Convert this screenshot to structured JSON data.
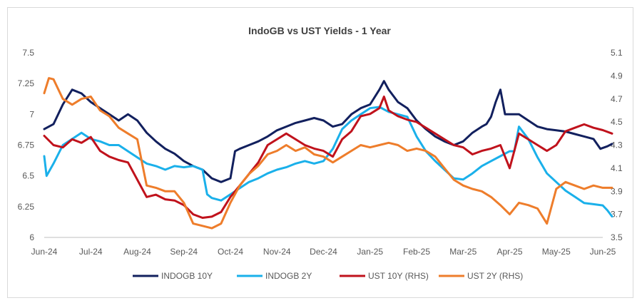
{
  "chart_data": {
    "type": "line",
    "title": "IndoGB vs UST Yields - 1 Year",
    "x_tick_labels": [
      "Jun-24",
      "Jul-24",
      "Aug-24",
      "Sep-24",
      "Oct-24",
      "Nov-24",
      "Dec-24",
      "Jan-25",
      "Feb-25",
      "Mar-25",
      "Apr-25",
      "May-25",
      "Jun-25"
    ],
    "y_left": {
      "ticks": [
        "6",
        "6.25",
        "6.5",
        "6.75",
        "7",
        "7.25",
        "7.5"
      ],
      "ylim": [
        6,
        7.5
      ]
    },
    "y_right": {
      "ticks": [
        "3.5",
        "3.7",
        "3.9",
        "4.1",
        "4.3",
        "4.5",
        "4.7",
        "4.9",
        "5.1"
      ],
      "ylim": [
        3.5,
        5.1
      ]
    },
    "grid": false,
    "legend_position": "bottom",
    "series": [
      {
        "name": "INDOGB 10Y",
        "axis": "left",
        "color": "#12205e",
        "points": [
          [
            0,
            6.88
          ],
          [
            0.2,
            6.92
          ],
          [
            0.4,
            7.08
          ],
          [
            0.6,
            7.2
          ],
          [
            0.8,
            7.17
          ],
          [
            1.0,
            7.1
          ],
          [
            1.2,
            7.05
          ],
          [
            1.4,
            7.0
          ],
          [
            1.6,
            6.95
          ],
          [
            1.8,
            7.0
          ],
          [
            2.0,
            6.95
          ],
          [
            2.2,
            6.85
          ],
          [
            2.4,
            6.78
          ],
          [
            2.6,
            6.72
          ],
          [
            2.8,
            6.68
          ],
          [
            3.0,
            6.62
          ],
          [
            3.2,
            6.58
          ],
          [
            3.4,
            6.55
          ],
          [
            3.6,
            6.48
          ],
          [
            3.8,
            6.45
          ],
          [
            4.0,
            6.48
          ],
          [
            4.1,
            6.7
          ],
          [
            4.2,
            6.72
          ],
          [
            4.4,
            6.75
          ],
          [
            4.6,
            6.78
          ],
          [
            4.8,
            6.82
          ],
          [
            5.0,
            6.87
          ],
          [
            5.2,
            6.9
          ],
          [
            5.4,
            6.93
          ],
          [
            5.6,
            6.95
          ],
          [
            5.8,
            6.97
          ],
          [
            6.0,
            6.95
          ],
          [
            6.2,
            6.9
          ],
          [
            6.4,
            6.92
          ],
          [
            6.6,
            7.0
          ],
          [
            6.8,
            7.05
          ],
          [
            7.0,
            7.08
          ],
          [
            7.2,
            7.2
          ],
          [
            7.3,
            7.27
          ],
          [
            7.4,
            7.2
          ],
          [
            7.6,
            7.1
          ],
          [
            7.8,
            7.05
          ],
          [
            8.0,
            6.95
          ],
          [
            8.2,
            6.88
          ],
          [
            8.4,
            6.82
          ],
          [
            8.6,
            6.78
          ],
          [
            8.8,
            6.75
          ],
          [
            9.0,
            6.78
          ],
          [
            9.2,
            6.85
          ],
          [
            9.4,
            6.9
          ],
          [
            9.5,
            6.92
          ],
          [
            9.6,
            6.98
          ],
          [
            9.7,
            7.1
          ],
          [
            9.8,
            7.2
          ],
          [
            9.9,
            7.0
          ],
          [
            10.0,
            7.0
          ],
          [
            10.2,
            7.0
          ],
          [
            10.4,
            6.95
          ],
          [
            10.6,
            6.9
          ],
          [
            10.8,
            6.88
          ],
          [
            11.0,
            6.87
          ],
          [
            11.2,
            6.86
          ],
          [
            11.4,
            6.84
          ],
          [
            11.6,
            6.82
          ],
          [
            11.8,
            6.8
          ],
          [
            11.95,
            6.72
          ],
          [
            12.1,
            6.74
          ],
          [
            12.2,
            6.76
          ]
        ]
      },
      {
        "name": "INDOGB 2Y",
        "axis": "left",
        "color": "#1ab0ea",
        "points": [
          [
            0,
            6.66
          ],
          [
            0.05,
            6.5
          ],
          [
            0.2,
            6.6
          ],
          [
            0.4,
            6.75
          ],
          [
            0.6,
            6.8
          ],
          [
            0.8,
            6.85
          ],
          [
            1.0,
            6.8
          ],
          [
            1.2,
            6.78
          ],
          [
            1.4,
            6.75
          ],
          [
            1.6,
            6.75
          ],
          [
            1.8,
            6.7
          ],
          [
            2.0,
            6.65
          ],
          [
            2.2,
            6.6
          ],
          [
            2.4,
            6.58
          ],
          [
            2.6,
            6.55
          ],
          [
            2.8,
            6.58
          ],
          [
            3.0,
            6.57
          ],
          [
            3.2,
            6.58
          ],
          [
            3.4,
            6.55
          ],
          [
            3.5,
            6.35
          ],
          [
            3.6,
            6.32
          ],
          [
            3.8,
            6.3
          ],
          [
            4.0,
            6.35
          ],
          [
            4.2,
            6.4
          ],
          [
            4.4,
            6.45
          ],
          [
            4.6,
            6.48
          ],
          [
            4.8,
            6.52
          ],
          [
            5.0,
            6.55
          ],
          [
            5.2,
            6.57
          ],
          [
            5.4,
            6.6
          ],
          [
            5.6,
            6.62
          ],
          [
            5.8,
            6.6
          ],
          [
            6.0,
            6.62
          ],
          [
            6.2,
            6.72
          ],
          [
            6.4,
            6.88
          ],
          [
            6.6,
            6.95
          ],
          [
            6.8,
            7.0
          ],
          [
            7.0,
            7.05
          ],
          [
            7.2,
            7.06
          ],
          [
            7.4,
            7.02
          ],
          [
            7.6,
            7.0
          ],
          [
            7.8,
            6.98
          ],
          [
            7.9,
            6.9
          ],
          [
            8.0,
            6.82
          ],
          [
            8.2,
            6.7
          ],
          [
            8.4,
            6.62
          ],
          [
            8.6,
            6.55
          ],
          [
            8.8,
            6.48
          ],
          [
            9.0,
            6.47
          ],
          [
            9.2,
            6.52
          ],
          [
            9.4,
            6.58
          ],
          [
            9.6,
            6.62
          ],
          [
            9.8,
            6.66
          ],
          [
            10.0,
            6.7
          ],
          [
            10.1,
            6.7
          ],
          [
            10.2,
            6.9
          ],
          [
            10.4,
            6.8
          ],
          [
            10.6,
            6.65
          ],
          [
            10.8,
            6.52
          ],
          [
            11.0,
            6.45
          ],
          [
            11.2,
            6.38
          ],
          [
            11.4,
            6.33
          ],
          [
            11.6,
            6.28
          ],
          [
            11.8,
            6.27
          ],
          [
            12.0,
            6.26
          ],
          [
            12.1,
            6.22
          ],
          [
            12.2,
            6.17
          ]
        ]
      },
      {
        "name": "UST 10Y (RHS)",
        "axis": "right",
        "color": "#c0121c",
        "points": [
          [
            0,
            4.38
          ],
          [
            0.2,
            4.3
          ],
          [
            0.4,
            4.28
          ],
          [
            0.6,
            4.35
          ],
          [
            0.8,
            4.32
          ],
          [
            1.0,
            4.37
          ],
          [
            1.2,
            4.25
          ],
          [
            1.4,
            4.2
          ],
          [
            1.6,
            4.17
          ],
          [
            1.8,
            4.15
          ],
          [
            2.0,
            4.0
          ],
          [
            2.2,
            3.85
          ],
          [
            2.4,
            3.87
          ],
          [
            2.6,
            3.83
          ],
          [
            2.8,
            3.82
          ],
          [
            3.0,
            3.78
          ],
          [
            3.2,
            3.7
          ],
          [
            3.4,
            3.67
          ],
          [
            3.6,
            3.68
          ],
          [
            3.8,
            3.72
          ],
          [
            4.0,
            3.85
          ],
          [
            4.2,
            3.95
          ],
          [
            4.4,
            4.05
          ],
          [
            4.6,
            4.15
          ],
          [
            4.8,
            4.3
          ],
          [
            5.0,
            4.35
          ],
          [
            5.2,
            4.4
          ],
          [
            5.4,
            4.35
          ],
          [
            5.6,
            4.3
          ],
          [
            5.8,
            4.27
          ],
          [
            6.0,
            4.25
          ],
          [
            6.2,
            4.2
          ],
          [
            6.4,
            4.35
          ],
          [
            6.6,
            4.42
          ],
          [
            6.8,
            4.55
          ],
          [
            7.0,
            4.57
          ],
          [
            7.2,
            4.62
          ],
          [
            7.3,
            4.72
          ],
          [
            7.4,
            4.6
          ],
          [
            7.6,
            4.55
          ],
          [
            7.8,
            4.52
          ],
          [
            8.0,
            4.5
          ],
          [
            8.2,
            4.45
          ],
          [
            8.4,
            4.4
          ],
          [
            8.6,
            4.35
          ],
          [
            8.8,
            4.3
          ],
          [
            9.0,
            4.28
          ],
          [
            9.2,
            4.22
          ],
          [
            9.4,
            4.25
          ],
          [
            9.6,
            4.27
          ],
          [
            9.8,
            4.3
          ],
          [
            10.0,
            4.1
          ],
          [
            10.1,
            4.25
          ],
          [
            10.2,
            4.4
          ],
          [
            10.4,
            4.35
          ],
          [
            10.6,
            4.3
          ],
          [
            10.8,
            4.25
          ],
          [
            11.0,
            4.3
          ],
          [
            11.2,
            4.42
          ],
          [
            11.4,
            4.45
          ],
          [
            11.6,
            4.48
          ],
          [
            11.8,
            4.45
          ],
          [
            12.0,
            4.43
          ],
          [
            12.2,
            4.4
          ]
        ]
      },
      {
        "name": "UST 2Y (RHS)",
        "axis": "right",
        "color": "#ee7d2b",
        "points": [
          [
            0,
            4.75
          ],
          [
            0.1,
            4.88
          ],
          [
            0.2,
            4.87
          ],
          [
            0.4,
            4.7
          ],
          [
            0.6,
            4.65
          ],
          [
            0.8,
            4.7
          ],
          [
            1.0,
            4.72
          ],
          [
            1.2,
            4.6
          ],
          [
            1.4,
            4.55
          ],
          [
            1.6,
            4.45
          ],
          [
            1.8,
            4.4
          ],
          [
            2.0,
            4.35
          ],
          [
            2.1,
            4.15
          ],
          [
            2.2,
            3.95
          ],
          [
            2.4,
            3.93
          ],
          [
            2.6,
            3.9
          ],
          [
            2.8,
            3.9
          ],
          [
            3.0,
            3.8
          ],
          [
            3.2,
            3.62
          ],
          [
            3.4,
            3.6
          ],
          [
            3.6,
            3.58
          ],
          [
            3.8,
            3.62
          ],
          [
            4.0,
            3.8
          ],
          [
            4.2,
            3.95
          ],
          [
            4.4,
            4.05
          ],
          [
            4.6,
            4.12
          ],
          [
            4.8,
            4.22
          ],
          [
            5.0,
            4.25
          ],
          [
            5.2,
            4.3
          ],
          [
            5.4,
            4.25
          ],
          [
            5.6,
            4.28
          ],
          [
            5.8,
            4.22
          ],
          [
            6.0,
            4.2
          ],
          [
            6.2,
            4.15
          ],
          [
            6.4,
            4.2
          ],
          [
            6.6,
            4.25
          ],
          [
            6.8,
            4.3
          ],
          [
            7.0,
            4.28
          ],
          [
            7.2,
            4.3
          ],
          [
            7.4,
            4.32
          ],
          [
            7.6,
            4.3
          ],
          [
            7.8,
            4.25
          ],
          [
            8.0,
            4.27
          ],
          [
            8.2,
            4.25
          ],
          [
            8.4,
            4.2
          ],
          [
            8.6,
            4.1
          ],
          [
            8.8,
            4.0
          ],
          [
            9.0,
            3.95
          ],
          [
            9.2,
            3.92
          ],
          [
            9.4,
            3.9
          ],
          [
            9.6,
            3.85
          ],
          [
            9.8,
            3.78
          ],
          [
            10.0,
            3.7
          ],
          [
            10.2,
            3.8
          ],
          [
            10.4,
            3.78
          ],
          [
            10.6,
            3.75
          ],
          [
            10.8,
            3.62
          ],
          [
            11.0,
            3.92
          ],
          [
            11.2,
            3.98
          ],
          [
            11.4,
            3.95
          ],
          [
            11.6,
            3.92
          ],
          [
            11.8,
            3.95
          ],
          [
            12.0,
            3.93
          ],
          [
            12.2,
            3.93
          ]
        ]
      }
    ]
  }
}
